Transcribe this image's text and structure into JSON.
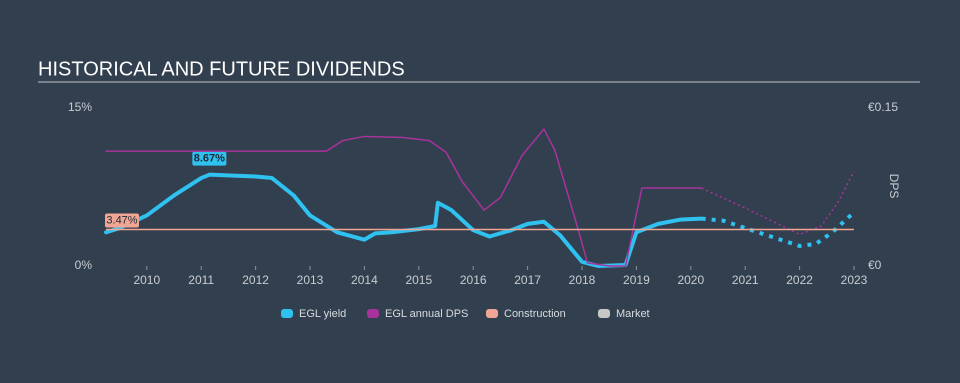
{
  "chart_data": {
    "type": "line",
    "title": "HISTORICAL AND FUTURE DIVIDENDS",
    "y2label": "DPS",
    "xlim": [
      2009.25,
      2023
    ],
    "xticks": [
      2010,
      2011,
      2012,
      2013,
      2014,
      2015,
      2016,
      2017,
      2018,
      2019,
      2020,
      2021,
      2022,
      2023
    ],
    "ylim": [
      0,
      15
    ],
    "yticks": [
      {
        "value": 0,
        "label": "0%"
      },
      {
        "value": 15,
        "label": "15%"
      }
    ],
    "y2lim": [
      0,
      0.15
    ],
    "y2ticks": [
      {
        "value": 0,
        "label": "€0"
      },
      {
        "value": 0.15,
        "label": "€0.15"
      }
    ],
    "series": [
      {
        "name": "EGL yield",
        "color": "#2fc1f0",
        "x": [
          2009.25,
          2009.5,
          2010,
          2010.5,
          2011,
          2011.15,
          2012,
          2012.3,
          2012.7,
          2013,
          2013.5,
          2014,
          2014.2,
          2014.5,
          2015,
          2015.3,
          2015.35,
          2015.6,
          2016,
          2016.3,
          2016.7,
          2017,
          2017.3,
          2017.6,
          2018,
          2018.3,
          2018.8,
          2019,
          2019.4,
          2019.8,
          2020.2
        ],
        "values": [
          3.2,
          3.6,
          4.8,
          6.7,
          8.35,
          8.67,
          8.5,
          8.35,
          6.7,
          4.8,
          3.2,
          2.5,
          3.1,
          3.2,
          3.5,
          3.8,
          6.0,
          5.3,
          3.4,
          2.8,
          3.4,
          4.0,
          4.2,
          2.9,
          0.4,
          0,
          0.1,
          3.2,
          4.0,
          4.4,
          4.5
        ],
        "label": {
          "x": 2011.15,
          "value": 8.67,
          "text": "8.67%"
        },
        "forecast": {
          "x": [
            2020.2,
            2020.6,
            2021,
            2021.5,
            2022,
            2022.3,
            2022.6,
            2023
          ],
          "values": [
            4.5,
            4.3,
            3.6,
            2.75,
            1.9,
            2.1,
            3.2,
            5.1
          ]
        }
      },
      {
        "name": "EGL annual DPS",
        "color": "#a8339c",
        "axis": "y2",
        "x": [
          2009.25,
          2013.3,
          2013.6,
          2014,
          2014.7,
          2015.2,
          2015.5,
          2015.8,
          2016.2,
          2016.5,
          2016.9,
          2017.3,
          2017.5,
          2017.9,
          2018.1,
          2018.5,
          2018.8,
          2019.1,
          2019.5,
          2020.2
        ],
        "values": [
          0.109,
          0.109,
          0.119,
          0.123,
          0.122,
          0.119,
          0.108,
          0.08,
          0.053,
          0.065,
          0.105,
          0.13,
          0.11,
          0.04,
          0.003,
          0,
          0,
          0.074,
          0.074,
          0.074
        ],
        "forecast": {
          "x": [
            2020.2,
            2021,
            2021.6,
            2022,
            2022.4,
            2022.7,
            2023
          ],
          "values": [
            0.074,
            0.055,
            0.04,
            0.03,
            0.038,
            0.06,
            0.09
          ]
        }
      },
      {
        "name": "Construction",
        "color": "#f0a595",
        "values": [
          3.47
        ],
        "value_labels": [
          "3.47%"
        ]
      },
      {
        "name": "Market",
        "color": "#c8c8c8"
      }
    ]
  }
}
